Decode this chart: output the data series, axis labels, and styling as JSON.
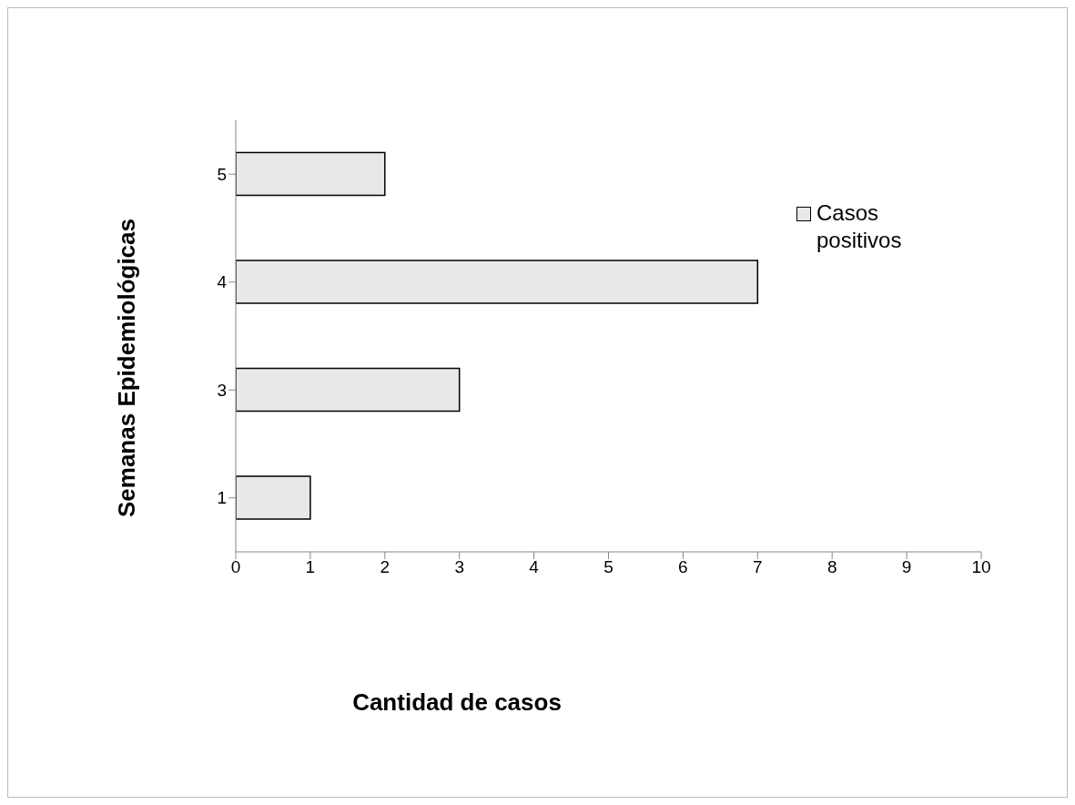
{
  "chart_data": {
    "type": "bar",
    "orientation": "horizontal",
    "xlabel": "Cantidad de casos",
    "ylabel": "Semanas Epidemiológicas",
    "categories": [
      "5",
      "4",
      "3",
      "1"
    ],
    "series": [
      {
        "name": "Casos positivos",
        "color": "#e8e8e8",
        "values": [
          2,
          7,
          3,
          1
        ]
      }
    ],
    "xlim": [
      0,
      10
    ],
    "xticks": [
      0,
      1,
      2,
      3,
      4,
      5,
      6,
      7,
      8,
      9,
      10
    ],
    "legend": "right",
    "grid": false
  }
}
